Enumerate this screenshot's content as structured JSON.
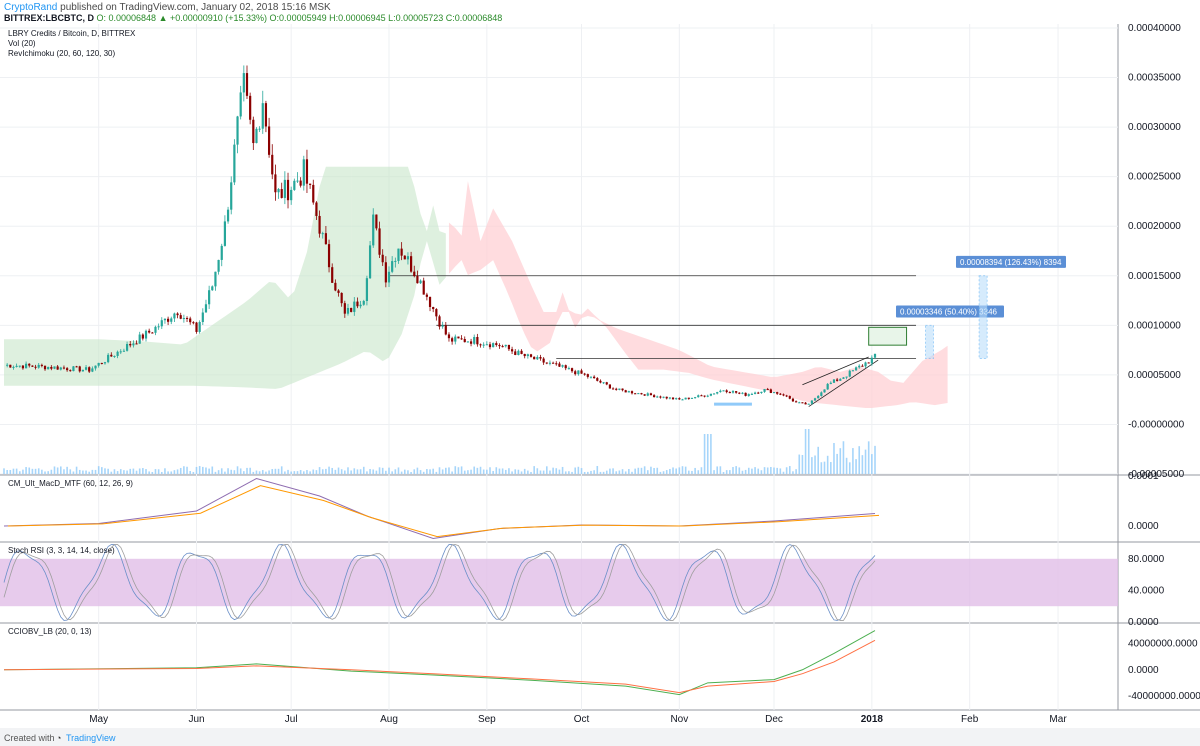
{
  "header": {
    "author": "CryptoRand",
    "published": "published on TradingView.com, January 02, 2018 15:16 MSK",
    "symbol": "BITTREX:LBCBTC, D",
    "ohlc": "O: 0.00006848 ▲ +0.00000910 (+15.33%) O:0.00005949 H:0.00006945 L:0.00005723 C:0.00006848"
  },
  "legend": {
    "pair": "LBRY Credits / Bitcoin, D, BITTREX",
    "vol": "Vol (20)",
    "ichimoku": "RevIchimoku (20, 60, 120, 30)"
  },
  "footer": {
    "created_with": "Created with",
    "brand": "TradingView"
  },
  "chart_data": [
    {
      "type": "candlestick",
      "name": "LBRY Credits / Bitcoin, D, BITTREX",
      "x_ticks": [
        "May",
        "Jun",
        "Jul",
        "Aug",
        "Sep",
        "Oct",
        "Nov",
        "Dec",
        "2018",
        "Feb",
        "Mar"
      ],
      "y_ticks": [
        "0.00040000",
        "0.00035000",
        "0.00030000",
        "0.00025000",
        "0.00020000",
        "0.00015000",
        "0.00010000",
        "0.00005000",
        "-0.00000000",
        "-0.00005000"
      ],
      "ylim": [
        -5e-05,
        0.0004
      ],
      "anchors": [
        {
          "date": "2017-04-01",
          "price": 6e-05
        },
        {
          "date": "2017-04-15",
          "price": 5.8e-05
        },
        {
          "date": "2017-04-28",
          "price": 5.5e-05
        },
        {
          "date": "2017-05-08",
          "price": 7.5e-05
        },
        {
          "date": "2017-05-18",
          "price": 9.5e-05
        },
        {
          "date": "2017-05-26",
          "price": 0.000115
        },
        {
          "date": "2017-06-01",
          "price": 9.5e-05
        },
        {
          "date": "2017-06-06",
          "price": 0.00014
        },
        {
          "date": "2017-06-10",
          "price": 0.0002
        },
        {
          "date": "2017-06-14",
          "price": 0.0003
        },
        {
          "date": "2017-06-16",
          "price": 0.00034
        },
        {
          "date": "2017-06-19",
          "price": 0.00028
        },
        {
          "date": "2017-06-22",
          "price": 0.00033
        },
        {
          "date": "2017-06-26",
          "price": 0.00023
        },
        {
          "date": "2017-07-01",
          "price": 0.00024
        },
        {
          "date": "2017-07-05",
          "price": 0.000255
        },
        {
          "date": "2017-07-10",
          "price": 0.0002
        },
        {
          "date": "2017-07-14",
          "price": 0.00015
        },
        {
          "date": "2017-07-18",
          "price": 0.00011
        },
        {
          "date": "2017-07-24",
          "price": 0.00013
        },
        {
          "date": "2017-07-27",
          "price": 0.000205
        },
        {
          "date": "2017-07-31",
          "price": 0.00015
        },
        {
          "date": "2017-08-04",
          "price": 0.00018
        },
        {
          "date": "2017-08-10",
          "price": 0.00015
        },
        {
          "date": "2017-08-16",
          "price": 0.00011
        },
        {
          "date": "2017-08-20",
          "price": 8.5e-05
        },
        {
          "date": "2017-08-28",
          "price": 8.5e-05
        },
        {
          "date": "2017-09-05",
          "price": 8e-05
        },
        {
          "date": "2017-09-12",
          "price": 7e-05
        },
        {
          "date": "2017-09-22",
          "price": 6e-05
        },
        {
          "date": "2017-10-02",
          "price": 5e-05
        },
        {
          "date": "2017-10-12",
          "price": 3.5e-05
        },
        {
          "date": "2017-10-22",
          "price": 3e-05
        },
        {
          "date": "2017-11-01",
          "price": 2.5e-05
        },
        {
          "date": "2017-11-10",
          "price": 3e-05
        },
        {
          "date": "2017-11-15",
          "price": 3.5e-05
        },
        {
          "date": "2017-11-22",
          "price": 3e-05
        },
        {
          "date": "2017-11-28",
          "price": 3.5e-05
        },
        {
          "date": "2017-12-04",
          "price": 3e-05
        },
        {
          "date": "2017-12-08",
          "price": 2.2e-05
        },
        {
          "date": "2017-12-12",
          "price": 2e-05
        },
        {
          "date": "2017-12-18",
          "price": 4e-05
        },
        {
          "date": "2017-12-24",
          "price": 5e-05
        },
        {
          "date": "2017-12-30",
          "price": 6.2e-05
        },
        {
          "date": "2018-01-02",
          "price": 6.8e-05
        }
      ],
      "cloud_upper_label": "RevIchimoku (20, 60, 120, 30)",
      "horizontal_levels": [
        {
          "price": 0.00015,
          "from": "2017-08-01",
          "to": "2018-01-15"
        },
        {
          "price": 0.0001,
          "from": "2017-08-16",
          "to": "2018-01-15"
        },
        {
          "price": 6.65e-05,
          "from": "2017-09-23",
          "to": "2018-01-15"
        }
      ],
      "measure_labels": [
        {
          "text": "0.00003346 (50.40%) 3346",
          "price": 0.000112
        },
        {
          "text": "0.00008394 (126.43%) 8394",
          "price": 0.000162
        }
      ]
    },
    {
      "type": "line",
      "name": "CM_Ult_MacD_MTF (60, 12, 26, 9)",
      "y_ticks": [
        "0.0001",
        "0.0000"
      ],
      "ylim": [
        -3e-05,
        0.0001
      ],
      "series": [
        {
          "points": [
            [
              "2017-04-01",
              0.0
            ],
            [
              "2017-05-01",
              5e-06
            ],
            [
              "2017-06-01",
              3e-05
            ],
            [
              "2017-06-20",
              9.5e-05
            ],
            [
              "2017-07-10",
              6e-05
            ],
            [
              "2017-07-25",
              2e-05
            ],
            [
              "2017-08-15",
              -2.5e-05
            ],
            [
              "2017-09-05",
              -5e-06
            ],
            [
              "2017-10-01",
              2e-06
            ],
            [
              "2017-11-01",
              0.0
            ],
            [
              "2017-12-01",
              1e-05
            ],
            [
              "2018-01-02",
              2.5e-05
            ]
          ]
        }
      ]
    },
    {
      "type": "line",
      "name": "Stoch RSI (3, 3, 14, 14, close)",
      "y_ticks": [
        "80.0000",
        "40.0000",
        "0.0000"
      ],
      "ylim": [
        0,
        100
      ],
      "band": [
        20,
        80
      ],
      "series_count": 2
    },
    {
      "type": "line",
      "name": "CCIOBV_LB (20, 0, 13)",
      "y_ticks": [
        "40000000.0000",
        "0.0000",
        "-40000000.0000"
      ],
      "ylim": [
        -60000000,
        70000000
      ],
      "series": [
        {
          "color": "#4caf50",
          "points": [
            [
              "2017-04-01",
              0
            ],
            [
              "2017-06-01",
              3000000
            ],
            [
              "2017-06-20",
              9000000
            ],
            [
              "2017-07-20",
              -2000000
            ],
            [
              "2017-08-15",
              -8000000
            ],
            [
              "2017-09-15",
              -16000000
            ],
            [
              "2017-10-15",
              -25000000
            ],
            [
              "2017-11-01",
              -38000000
            ],
            [
              "2017-11-10",
              -20000000
            ],
            [
              "2017-12-01",
              -15000000
            ],
            [
              "2017-12-10",
              0
            ],
            [
              "2017-12-20",
              25000000
            ],
            [
              "2018-01-02",
              60000000
            ]
          ]
        },
        {
          "color": "#ff7043",
          "points": [
            [
              "2017-04-01",
              0
            ],
            [
              "2017-06-01",
              2000000
            ],
            [
              "2017-06-20",
              6000000
            ],
            [
              "2017-07-20",
              0
            ],
            [
              "2017-08-15",
              -6000000
            ],
            [
              "2017-09-15",
              -14000000
            ],
            [
              "2017-10-15",
              -22000000
            ],
            [
              "2017-11-01",
              -35000000
            ],
            [
              "2017-11-10",
              -25000000
            ],
            [
              "2017-12-01",
              -18000000
            ],
            [
              "2017-12-10",
              -6000000
            ],
            [
              "2017-12-20",
              12000000
            ],
            [
              "2018-01-02",
              45000000
            ]
          ]
        }
      ]
    }
  ],
  "colors": {
    "up": "#26a69a",
    "down": "#8b0000",
    "cloud_bull": "#c8e6c9",
    "cloud_bear": "#ffcdd2",
    "volume": "#90caf9",
    "stoch_band": "#e1bee7",
    "macd": "#8e6cb0",
    "signal": "#ff9800"
  }
}
